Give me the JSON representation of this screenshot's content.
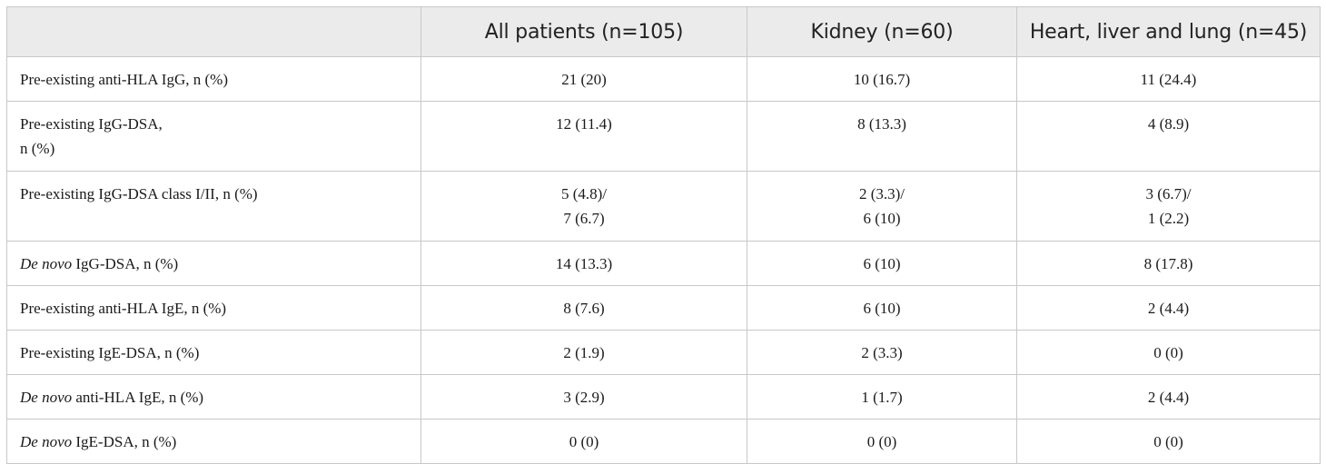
{
  "table": {
    "headers": [
      "",
      "All patients (n=105)",
      "Kidney (n=60)",
      "Heart, liver and lung (n=45)"
    ],
    "rows": [
      {
        "label_prefix": "",
        "label_lines": [
          "Pre-existing anti-HLA IgG, n (%)"
        ],
        "all": [
          "21 (20)"
        ],
        "kidney": [
          "10 (16.7)"
        ],
        "hll": [
          "11 (24.4)"
        ]
      },
      {
        "label_prefix": "",
        "label_lines": [
          "Pre-existing IgG-DSA,",
          "n (%)"
        ],
        "all": [
          "12 (11.4)"
        ],
        "kidney": [
          "8 (13.3)"
        ],
        "hll": [
          "4 (8.9)"
        ]
      },
      {
        "label_prefix": "",
        "label_lines": [
          "Pre-existing IgG-DSA class I/II, n (%)"
        ],
        "all": [
          "5 (4.8)/",
          "7 (6.7)"
        ],
        "kidney": [
          "2 (3.3)/",
          "6 (10)"
        ],
        "hll": [
          "3 (6.7)/",
          "1 (2.2)"
        ]
      },
      {
        "label_prefix": "De novo",
        "label_lines": [
          " IgG-DSA, n (%)"
        ],
        "all": [
          "14 (13.3)"
        ],
        "kidney": [
          "6 (10)"
        ],
        "hll": [
          "8 (17.8)"
        ]
      },
      {
        "label_prefix": "",
        "label_lines": [
          "Pre-existing anti-HLA IgE, n (%)"
        ],
        "all": [
          "8 (7.6)"
        ],
        "kidney": [
          "6 (10)"
        ],
        "hll": [
          "2 (4.4)"
        ]
      },
      {
        "label_prefix": "",
        "label_lines": [
          "Pre-existing IgE-DSA, n (%)"
        ],
        "all": [
          "2 (1.9)"
        ],
        "kidney": [
          "2 (3.3)"
        ],
        "hll": [
          "0 (0)"
        ]
      },
      {
        "label_prefix": "De novo",
        "label_lines": [
          " anti-HLA IgE, n (%)"
        ],
        "all": [
          "3 (2.9)"
        ],
        "kidney": [
          "1 (1.7)"
        ],
        "hll": [
          "2 (4.4)"
        ]
      },
      {
        "label_prefix": "De novo",
        "label_lines": [
          " IgE-DSA, n (%)"
        ],
        "all": [
          "0 (0)"
        ],
        "kidney": [
          "0 (0)"
        ],
        "hll": [
          "0 (0)"
        ]
      }
    ]
  }
}
